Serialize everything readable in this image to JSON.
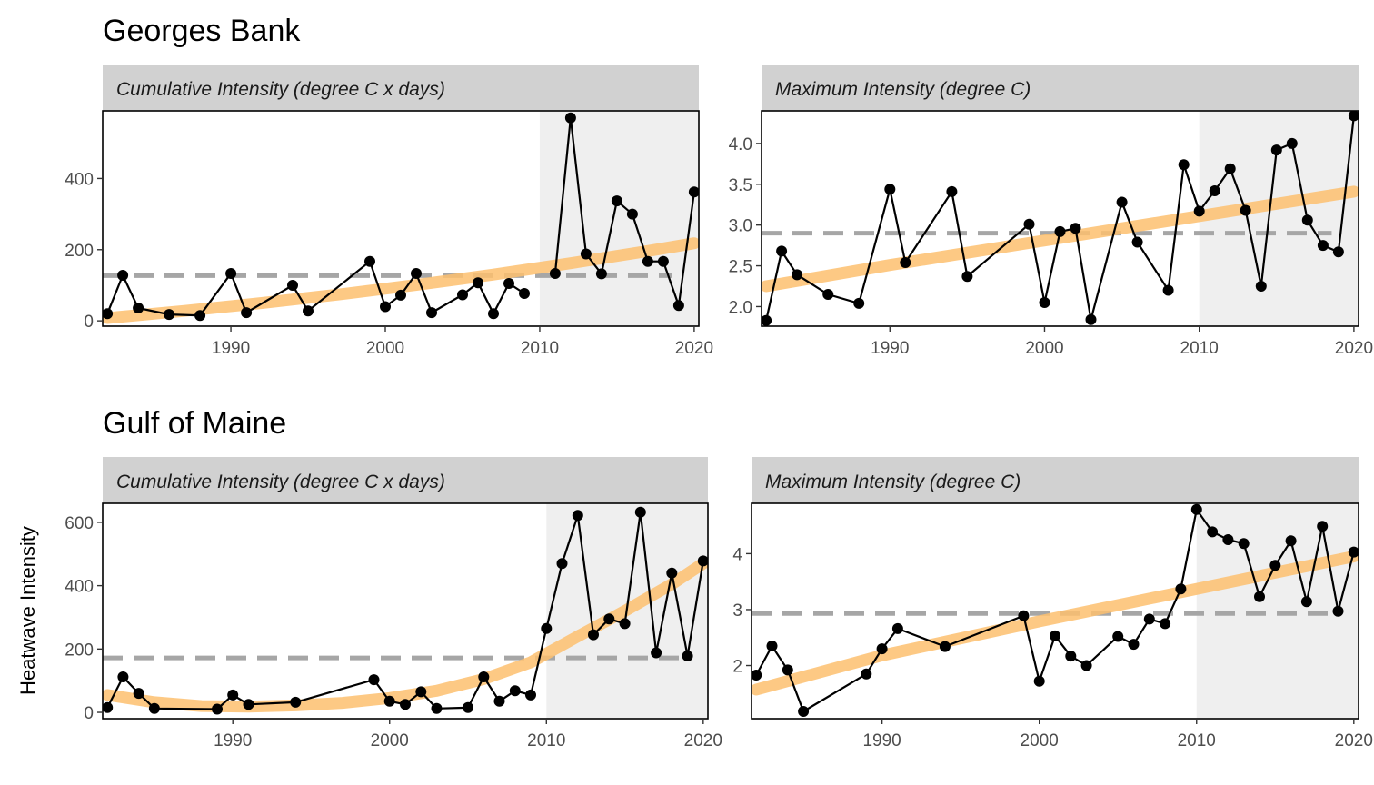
{
  "ylabel": "Heatwave Intensity",
  "colors": {
    "strip": "#d1d1d1",
    "recent_shade": "#efefef",
    "trend": "#fdbf6f",
    "reference": "#a6a6a6",
    "series": "#000000"
  },
  "chart_data": [
    {
      "type": "line",
      "region": "Georges Bank",
      "title": "Georges Bank",
      "facet": "Cumulative Intensity (degree C x days)",
      "x": [
        1982,
        1983,
        1984,
        1986,
        1988,
        1990,
        1991,
        1994,
        1995,
        1999,
        2000,
        2001,
        2002,
        2003,
        2005,
        2006,
        2007,
        2008,
        2009,
        2010,
        2011,
        2012,
        2013,
        2014,
        2015,
        2016,
        2017,
        2018,
        2019,
        2020
      ],
      "y": [
        20,
        128,
        36,
        18,
        15,
        133,
        23,
        100,
        28,
        167,
        40,
        72,
        133,
        23,
        73,
        107,
        20,
        105,
        77,
        null,
        133,
        570,
        188,
        132,
        337,
        300,
        167,
        167,
        43,
        362
      ],
      "shade_from": 2010,
      "reference": 127,
      "trend": [
        [
          1982,
          8
        ],
        [
          1987,
          28
        ],
        [
          1992,
          50
        ],
        [
          1997,
          74
        ],
        [
          2002,
          101
        ],
        [
          2007,
          130
        ],
        [
          2012,
          162
        ],
        [
          2017,
          196
        ],
        [
          2020,
          218
        ]
      ],
      "xlim": [
        1981.7,
        2020.3
      ],
      "ylim": [
        -15,
        590
      ],
      "xticks": [
        1990,
        2000,
        2010,
        2020
      ],
      "yticks": [
        0,
        200,
        400
      ]
    },
    {
      "type": "line",
      "region": "Georges Bank",
      "title": "",
      "facet": "Maximum Intensity (degree C)",
      "x": [
        1982,
        1983,
        1984,
        1986,
        1988,
        1990,
        1991,
        1994,
        1995,
        1999,
        2000,
        2001,
        2002,
        2003,
        2005,
        2006,
        2008,
        2009,
        2010,
        2011,
        2012,
        2013,
        2014,
        2015,
        2016,
        2017,
        2018,
        2019,
        2020
      ],
      "y": [
        1.83,
        2.68,
        2.39,
        2.15,
        2.04,
        3.44,
        2.54,
        3.41,
        2.37,
        3.01,
        2.05,
        2.92,
        2.96,
        1.84,
        3.28,
        2.79,
        2.2,
        3.74,
        3.17,
        3.42,
        3.69,
        3.18,
        2.25,
        3.92,
        4.0,
        3.06,
        2.75,
        2.67,
        4.34
      ],
      "shade_from": 2010,
      "reference": 2.9,
      "trend": [
        [
          1982,
          2.25
        ],
        [
          1990,
          2.51
        ],
        [
          2000,
          2.81
        ],
        [
          2010,
          3.11
        ],
        [
          2020,
          3.41
        ]
      ],
      "xlim": [
        1981.7,
        2020.3
      ],
      "ylim": [
        1.76,
        4.4
      ],
      "xticks": [
        1990,
        2000,
        2010,
        2020
      ],
      "yticks": [
        2.0,
        2.5,
        3.0,
        3.5,
        4.0
      ]
    },
    {
      "type": "line",
      "region": "Gulf of Maine",
      "title": "Gulf of Maine",
      "facet": "Cumulative Intensity (degree C x days)",
      "x": [
        1982,
        1983,
        1984,
        1985,
        1989,
        1990,
        1991,
        1994,
        1999,
        2000,
        2001,
        2002,
        2003,
        2005,
        2006,
        2007,
        2008,
        2009,
        2010,
        2011,
        2012,
        2013,
        2014,
        2015,
        2016,
        2017,
        2018,
        2019,
        2020
      ],
      "y": [
        15,
        112,
        60,
        12,
        10,
        55,
        25,
        32,
        103,
        35,
        25,
        65,
        12,
        15,
        112,
        35,
        68,
        55,
        265,
        470,
        622,
        245,
        295,
        280,
        632,
        188,
        440,
        178,
        478
      ],
      "shade_from": 2010,
      "reference": 172,
      "trend": [
        [
          1982,
          55
        ],
        [
          1985,
          32
        ],
        [
          1988,
          20
        ],
        [
          1991,
          18
        ],
        [
          1994,
          22
        ],
        [
          1997,
          30
        ],
        [
          2000,
          45
        ],
        [
          2003,
          68
        ],
        [
          2006,
          105
        ],
        [
          2009,
          158
        ],
        [
          2012,
          240
        ],
        [
          2015,
          320
        ],
        [
          2018,
          405
        ],
        [
          2020,
          470
        ]
      ],
      "xlim": [
        1981.7,
        2020.3
      ],
      "ylim": [
        -20,
        660
      ],
      "xticks": [
        1990,
        2000,
        2010,
        2020
      ],
      "yticks": [
        0,
        200,
        400,
        600
      ]
    },
    {
      "type": "line",
      "region": "Gulf of Maine",
      "title": "",
      "facet": "Maximum Intensity (degree C)",
      "x": [
        1982,
        1983,
        1984,
        1985,
        1989,
        1990,
        1991,
        1994,
        1999,
        2000,
        2001,
        2002,
        2003,
        2005,
        2006,
        2007,
        2008,
        2009,
        2010,
        2011,
        2012,
        2013,
        2014,
        2015,
        2016,
        2017,
        2018,
        2019,
        2020
      ],
      "y": [
        1.83,
        2.35,
        1.92,
        1.18,
        1.85,
        2.3,
        2.66,
        2.34,
        2.89,
        1.72,
        2.53,
        2.17,
        2.0,
        2.52,
        2.38,
        2.83,
        2.75,
        3.37,
        4.79,
        4.39,
        4.25,
        4.18,
        3.23,
        3.79,
        4.23,
        3.14,
        4.49,
        2.97,
        4.03
      ],
      "shade_from": 2010,
      "reference": 2.93,
      "trend": [
        [
          1982,
          1.57
        ],
        [
          1990,
          2.18
        ],
        [
          2000,
          2.79
        ],
        [
          2010,
          3.37
        ],
        [
          2020,
          3.95
        ]
      ],
      "xlim": [
        1981.7,
        2020.3
      ],
      "ylim": [
        1.05,
        4.9
      ],
      "xticks": [
        1990,
        2000,
        2010,
        2020
      ],
      "yticks": [
        2,
        3,
        4
      ]
    }
  ]
}
